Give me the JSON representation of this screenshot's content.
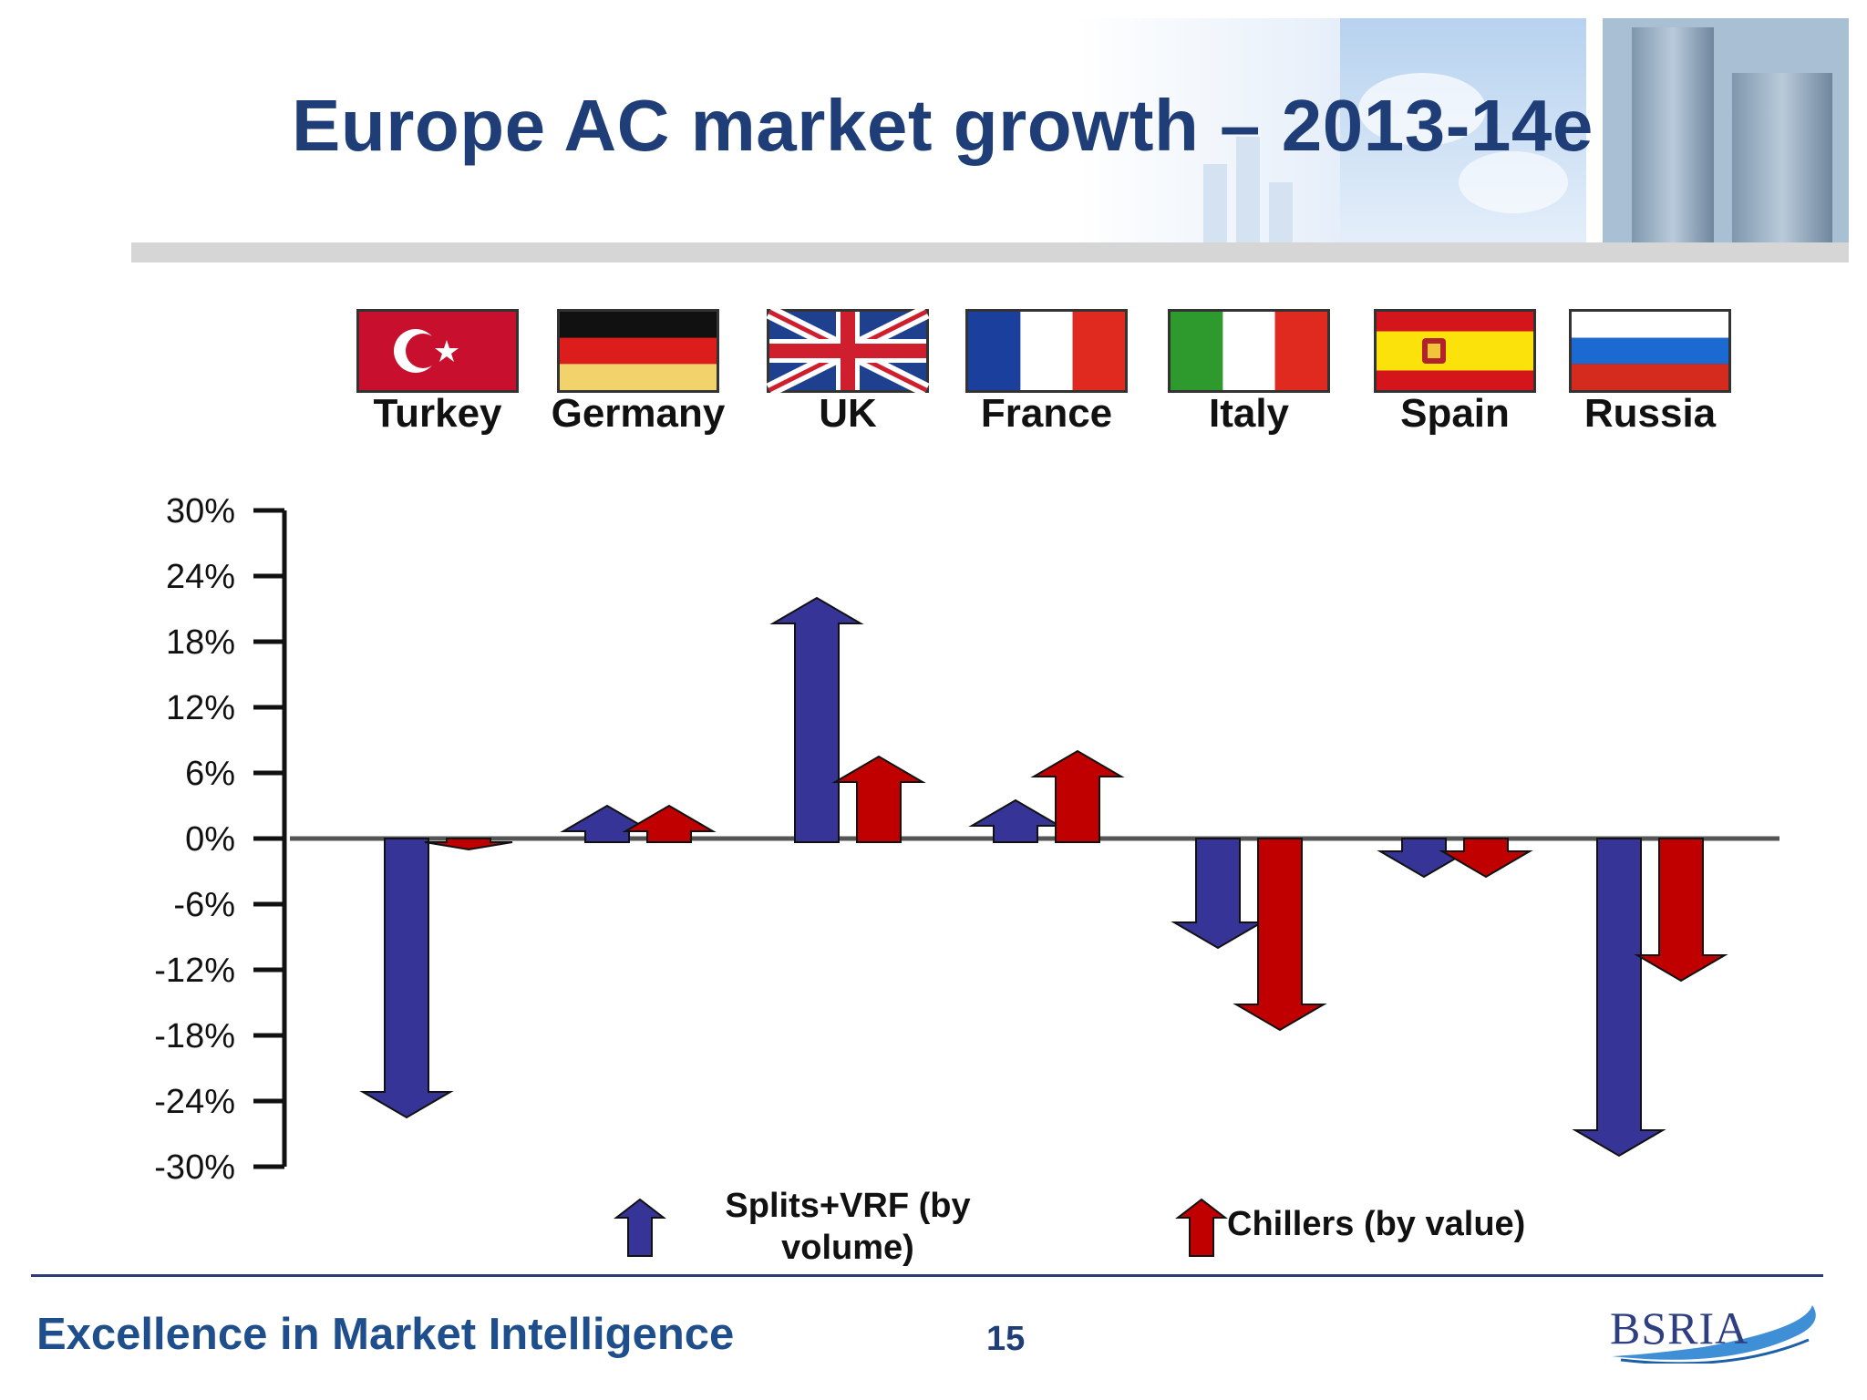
{
  "title": "Europe AC market growth – 2013-14e",
  "countries": [
    {
      "name": "Turkey",
      "flag": "turkey-flag"
    },
    {
      "name": "Germany",
      "flag": "germany-flag"
    },
    {
      "name": "UK",
      "flag": "uk-flag"
    },
    {
      "name": "France",
      "flag": "france-flag"
    },
    {
      "name": "Italy",
      "flag": "italy-flag"
    },
    {
      "name": "Spain",
      "flag": "spain-flag"
    },
    {
      "name": "Russia",
      "flag": "russia-flag"
    }
  ],
  "colors": {
    "title": "#1f3e78",
    "splits": "#363597",
    "chillers": "#c00000",
    "axis": "#111111"
  },
  "chart_data": {
    "type": "bar",
    "categories": [
      "Turkey",
      "Germany",
      "UK",
      "France",
      "Italy",
      "Spain",
      "Russia"
    ],
    "series": [
      {
        "name": "Splits+VRF (by volume)",
        "values": [
          -25.5,
          3,
          22,
          3.5,
          -10,
          -3.5,
          -29
        ]
      },
      {
        "name": "Chillers (by value)",
        "values": [
          -1,
          3,
          7.5,
          8,
          -17.5,
          -3.5,
          -13
        ]
      }
    ],
    "yticks": [
      "30%",
      "24%",
      "18%",
      "12%",
      "6%",
      "0%",
      "-6%",
      "-12%",
      "-18%",
      "-24%",
      "-30%"
    ],
    "ylim": [
      -30,
      30
    ],
    "title": "",
    "xlabel": "",
    "ylabel": "",
    "legend_placement": "bottom"
  },
  "legend": {
    "splits_label": "Splits+VRF (by volume)",
    "chillers_label": "Chillers (by value)"
  },
  "footer": {
    "tagline": "Excellence in Market Intelligence",
    "page_number": "15",
    "logo_text": "BSRIA"
  }
}
